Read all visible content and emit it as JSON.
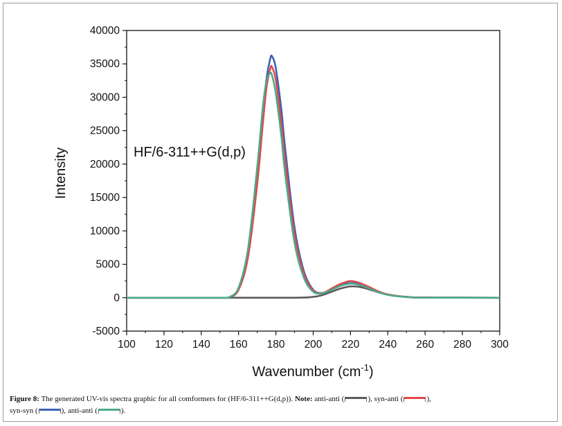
{
  "chart_data": {
    "type": "line",
    "title": "",
    "annotation": "HF/6-311++G(d,p)",
    "xlabel": "Wavenumber (cm",
    "xlabel_sup": "-1",
    "xlabel_suffix": ")",
    "ylabel": "Intensity",
    "xlim": [
      100,
      300
    ],
    "ylim": [
      -5000,
      40000
    ],
    "x_ticks": [
      "100",
      "120",
      "140",
      "160",
      "180",
      "200",
      "220",
      "240",
      "260",
      "280",
      "300"
    ],
    "y_ticks": [
      "-5000",
      "0",
      "5000",
      "10000",
      "15000",
      "20000",
      "25000",
      "30000",
      "35000",
      "40000"
    ],
    "grid": false,
    "series": [
      {
        "name": "anti-anti",
        "color": "#5a5a5a",
        "x": [
          100,
          150,
          190,
          200,
          205,
          210,
          215,
          220,
          225,
          230,
          235,
          240,
          250,
          260,
          300
        ],
        "y": [
          0,
          0,
          0,
          120,
          400,
          900,
          1400,
          1700,
          1600,
          1250,
          800,
          450,
          120,
          20,
          0
        ]
      },
      {
        "name": "syn-anti",
        "color": "#e04848",
        "x": [
          100,
          150,
          155,
          160,
          165,
          170,
          173,
          175,
          177,
          178,
          180,
          183,
          185,
          190,
          195,
          200,
          205,
          210,
          215,
          220,
          225,
          230,
          235,
          240,
          250,
          260,
          300
        ],
        "y": [
          0,
          0,
          80,
          1200,
          6000,
          17000,
          26000,
          31500,
          34300,
          34500,
          32500,
          26000,
          20500,
          9500,
          3600,
          1100,
          700,
          1400,
          2100,
          2500,
          2200,
          1600,
          950,
          500,
          120,
          20,
          0
        ]
      },
      {
        "name": "syn-syn",
        "color": "#3a62b8",
        "x": [
          100,
          150,
          155,
          160,
          165,
          170,
          173,
          175,
          177,
          178,
          180,
          183,
          185,
          190,
          195,
          200,
          205,
          210,
          215,
          220,
          225,
          230,
          235,
          240,
          250,
          260,
          300
        ],
        "y": [
          0,
          0,
          80,
          1200,
          6200,
          17500,
          27000,
          32800,
          35800,
          36100,
          34300,
          28000,
          22300,
          10500,
          4000,
          1200,
          700,
          1300,
          1900,
          2200,
          2000,
          1500,
          900,
          450,
          110,
          20,
          0
        ]
      },
      {
        "name": "anti-anti",
        "color": "#4caa8a",
        "x": [
          100,
          150,
          155,
          160,
          165,
          170,
          173,
          175,
          177,
          178,
          180,
          183,
          185,
          190,
          195,
          200,
          205,
          210,
          215,
          220,
          225,
          230,
          235,
          240,
          250,
          260,
          300
        ],
        "y": [
          0,
          0,
          100,
          1500,
          7200,
          19500,
          28500,
          32500,
          33600,
          33200,
          30500,
          24000,
          18500,
          8200,
          3000,
          900,
          650,
          1200,
          1800,
          2100,
          1900,
          1400,
          850,
          420,
          100,
          20,
          0
        ]
      }
    ]
  },
  "caption": {
    "figure_label": "Figure 8:",
    "text": "The generated UV-vis spectra graphic for all comformers for (HF/6-311++G(d,p)).",
    "note_label": "Note:",
    "legend": [
      {
        "label": "anti-anti (",
        "color": "#5a5a5a",
        "after": "),"
      },
      {
        "label": "syn-anti (",
        "color": "#e04848",
        "after": "),"
      },
      {
        "label": "syn-syn (",
        "color": "#3a62b8",
        "after": "),"
      },
      {
        "label": "anti-anti (",
        "color": "#4caa8a",
        "after": ")."
      }
    ]
  }
}
